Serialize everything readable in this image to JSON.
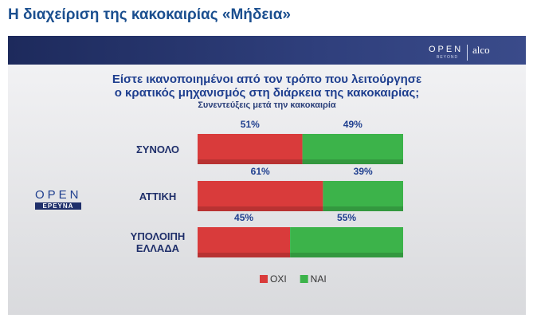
{
  "header": {
    "title": "Η διαχείριση της κακοκαιρίας «Μήδεια»"
  },
  "logos": {
    "top_left": "OPEN",
    "top_left_sub": "BEYOND",
    "top_right": "alco",
    "side": "OPEN",
    "side_sub": "ΕΡΕΥΝΑ"
  },
  "chart_data": {
    "type": "bar",
    "title": [
      "Είστε ικανοποιημένοι από τον τρόπο που λειτούργησε",
      "ο κρατικός μηχανισμός στη διάρκεια της κακοκαιρίας;"
    ],
    "subtitle": "Συνεντεύξεις μετά την κακοκαιρία",
    "orientation": "horizontal",
    "stacked": true,
    "categories": [
      "ΣΥΝΟΛΟ",
      "ΑΤΤΙΚΗ",
      "ΥΠΟΛΟΙΠΗ ΕΛΛΑΔΑ"
    ],
    "series": [
      {
        "name": "ΟΧΙ",
        "color": "#d93b3b",
        "values": [
          51,
          61,
          45
        ],
        "value_labels": [
          "51%",
          "61%",
          "45%"
        ]
      },
      {
        "name": "ΝΑΙ",
        "color": "#3cb34a",
        "values": [
          49,
          39,
          55
        ],
        "value_labels": [
          "49%",
          "39%",
          "55%"
        ]
      }
    ]
  }
}
